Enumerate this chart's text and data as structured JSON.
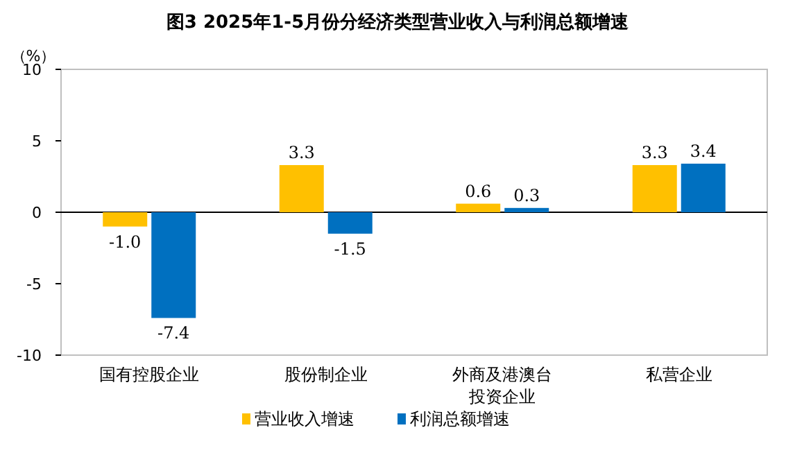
{
  "chart_data": {
    "type": "bar",
    "title": "图3 2025年1-5月份分经济类型营业收入与利润总额增速",
    "ylabel": "（%）",
    "categories": [
      "国有控股企业",
      "股份制企业",
      "外商及港澳台投资企业",
      "私营企业"
    ],
    "series": [
      {
        "name": "营业收入增速",
        "color": "#ffc000",
        "values": [
          -1.0,
          3.3,
          0.6,
          3.3
        ],
        "value_labels": [
          "-1.0",
          "3.3",
          "0.6",
          "3.3"
        ]
      },
      {
        "name": "利润总额增速",
        "color": "#0070c0",
        "values": [
          -7.4,
          -1.5,
          0.3,
          3.4
        ],
        "value_labels": [
          "-7.4",
          "-1.5",
          "0.3",
          "3.4"
        ]
      }
    ],
    "ylim": [
      -10,
      10
    ],
    "yticks": [
      -10,
      -5,
      0,
      5,
      10
    ],
    "legend": "bottom"
  }
}
